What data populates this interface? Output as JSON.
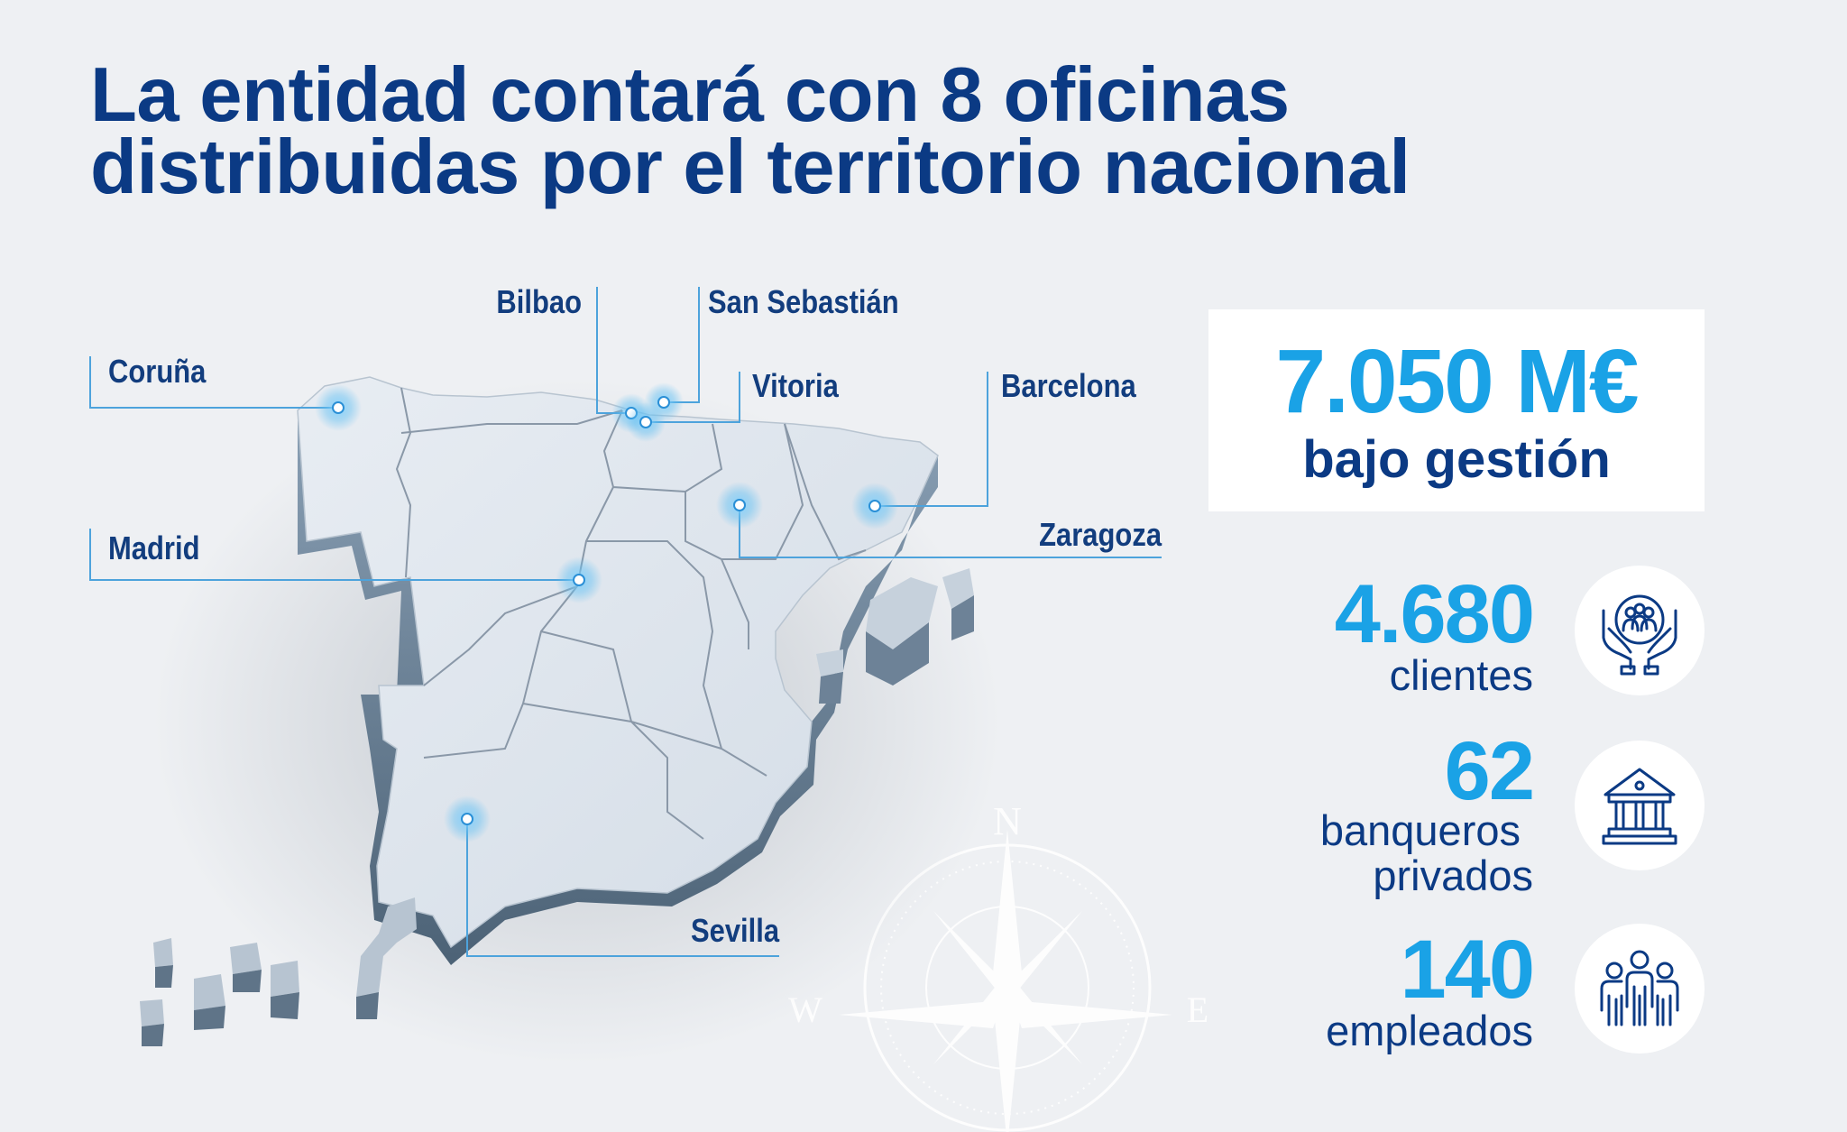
{
  "headline": {
    "line1": "La entidad contará con 8 oficinas",
    "line2": "distribuidas por el territorio nacional"
  },
  "map": {
    "cities": [
      {
        "name": "Coruña"
      },
      {
        "name": "Bilbao"
      },
      {
        "name": "San Sebastián"
      },
      {
        "name": "Vitoria"
      },
      {
        "name": "Barcelona"
      },
      {
        "name": "Zaragoza"
      },
      {
        "name": "Madrid"
      },
      {
        "name": "Sevilla"
      }
    ],
    "compass": {
      "n": "N",
      "e": "E",
      "w": "W"
    }
  },
  "stats": {
    "aum": {
      "value": "7.050 M€",
      "label": "bajo gestión"
    },
    "clients": {
      "value": "4.680",
      "label": "clientes",
      "icon": "clients-hands-icon"
    },
    "bankers": {
      "value": "62",
      "label_line1": "banqueros",
      "label_line2": "privados",
      "icon": "bank-icon"
    },
    "employees": {
      "value": "140",
      "label": "empleados",
      "icon": "people-icon"
    }
  },
  "colors": {
    "navy": "#0b3a84",
    "accent_blue": "#1aa2e6",
    "leader_line": "#4da3dc",
    "map_fill": "#dfe6ee"
  }
}
